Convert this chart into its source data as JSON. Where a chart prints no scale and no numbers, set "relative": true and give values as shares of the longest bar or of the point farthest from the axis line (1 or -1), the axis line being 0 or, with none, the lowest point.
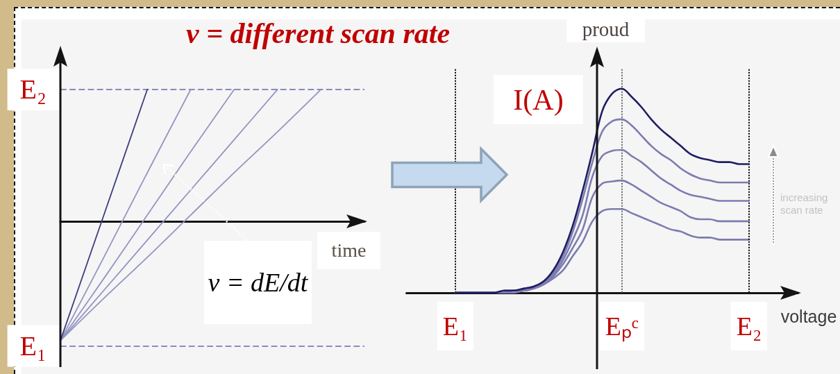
{
  "chart_data": [
    {
      "type": "line",
      "title": "v = different scan rate",
      "xlabel": "time",
      "annotations": [
        "v = dE/dt"
      ],
      "relative": true,
      "categories": [
        null,
        null,
        null,
        null,
        null,
        null,
        null,
        null
      ],
      "series": [
        {
          "color": "#3c3c7c",
          "values": [
            -0.9,
            0.05,
            1,
            null,
            null,
            null,
            null,
            null
          ]
        },
        {
          "color": "#9494c4",
          "values": [
            -0.9,
            -0.27,
            0.37,
            1,
            null,
            null,
            null,
            null
          ]
        },
        {
          "color": "#9494c4",
          "values": [
            -0.9,
            -0.43,
            0.05,
            0.53,
            1,
            null,
            null,
            null
          ]
        },
        {
          "color": "#9494c4",
          "values": [
            -0.9,
            -0.52,
            -0.14,
            0.24,
            0.62,
            1,
            null,
            null
          ]
        },
        {
          "color": "#9494c4",
          "values": [
            -0.9,
            -0.58,
            -0.27,
            0.05,
            0.37,
            0.68,
            1,
            null
          ]
        }
      ],
      "ref_lines": [
        {
          "axis": "y",
          "value": 1,
          "label": "E₂",
          "color": "#8a8abf",
          "line_style": "dashed"
        },
        {
          "axis": "y",
          "value": -0.94,
          "label": "E₁",
          "color": "#8a8abf",
          "line_style": "dashed"
        }
      ]
    },
    {
      "type": "line",
      "xlabel": "voltage",
      "ylabel": "proud",
      "annotations": [
        "I(A)",
        "increasing scan rate"
      ],
      "relative": true,
      "categories": [
        null,
        null,
        null,
        null,
        null,
        "E₁",
        null,
        null,
        null,
        null,
        null,
        null,
        null,
        null,
        null,
        null,
        null,
        null,
        null,
        null,
        null,
        null,
        "Eₚᶜ",
        null,
        null,
        null,
        null,
        null,
        null,
        null,
        null,
        null,
        null,
        null,
        null,
        "E₂",
        null,
        null,
        null,
        null,
        null
      ],
      "series": [
        {
          "color": "#1e1e64",
          "values": [
            null,
            null,
            null,
            null,
            null,
            0,
            0,
            0,
            0,
            0,
            0.01,
            0.01,
            0.02,
            0.03,
            0.055,
            0.11,
            0.2,
            0.33,
            0.5,
            0.69,
            0.89,
            0.975,
            1,
            0.96,
            0.91,
            0.85,
            0.8,
            0.76,
            0.72,
            0.68,
            0.66,
            0.65,
            0.64,
            0.64,
            0.63,
            0.63,
            null,
            null,
            null,
            null,
            null
          ]
        },
        {
          "color": "#7c7cb0",
          "values": [
            null,
            null,
            null,
            null,
            null,
            0,
            0,
            0,
            0,
            0,
            0.01,
            0.01,
            0.02,
            0.03,
            0.05,
            0.1,
            0.18,
            0.3,
            0.46,
            0.64,
            0.79,
            0.84,
            0.85,
            0.82,
            0.77,
            0.72,
            0.68,
            0.65,
            0.61,
            0.58,
            0.56,
            0.55,
            0.54,
            0.54,
            0.54,
            0.54,
            null,
            null,
            null,
            null,
            null
          ]
        },
        {
          "color": "#7c7cb0",
          "values": [
            null,
            null,
            null,
            null,
            null,
            0,
            0,
            0,
            0,
            0,
            0,
            0.01,
            0.01,
            0.03,
            0.05,
            0.09,
            0.16,
            0.26,
            0.38,
            0.57,
            0.67,
            0.695,
            0.7,
            0.67,
            0.64,
            0.6,
            0.56,
            0.53,
            0.5,
            0.48,
            0.47,
            0.46,
            0.45,
            0.45,
            0.45,
            0.45,
            null,
            null,
            null,
            null,
            null
          ]
        },
        {
          "color": "#7c7cb0",
          "values": [
            null,
            null,
            null,
            null,
            null,
            0,
            0,
            0,
            0,
            0,
            0,
            0.01,
            0.01,
            0.02,
            0.04,
            0.08,
            0.14,
            0.22,
            0.31,
            0.47,
            0.535,
            0.545,
            0.55,
            0.53,
            0.5,
            0.47,
            0.44,
            0.42,
            0.4,
            0.37,
            0.36,
            0.36,
            0.35,
            0.35,
            0.35,
            0.35,
            null,
            null,
            null,
            null,
            null
          ]
        },
        {
          "color": "#7c7cb0",
          "values": [
            null,
            null,
            null,
            null,
            null,
            0,
            0,
            0,
            0,
            0,
            0,
            0,
            0.01,
            0.02,
            0.04,
            0.07,
            0.11,
            0.18,
            0.25,
            0.35,
            0.4,
            0.41,
            0.41,
            0.39,
            0.37,
            0.35,
            0.33,
            0.31,
            0.3,
            0.28,
            0.27,
            0.27,
            0.26,
            0.26,
            0.26,
            0.26,
            null,
            null,
            null,
            null,
            null
          ]
        }
      ],
      "ref_lines": [
        {
          "axis": "x",
          "value": "E₁",
          "color": "#000000",
          "line_style": "dotted"
        },
        {
          "axis": "x",
          "value": "Eₚᶜ",
          "color": "#6a6a6a",
          "line_style": "dotted"
        },
        {
          "axis": "x",
          "value": "E₂",
          "color": "#000000",
          "line_style": "dotted"
        }
      ]
    }
  ]
}
